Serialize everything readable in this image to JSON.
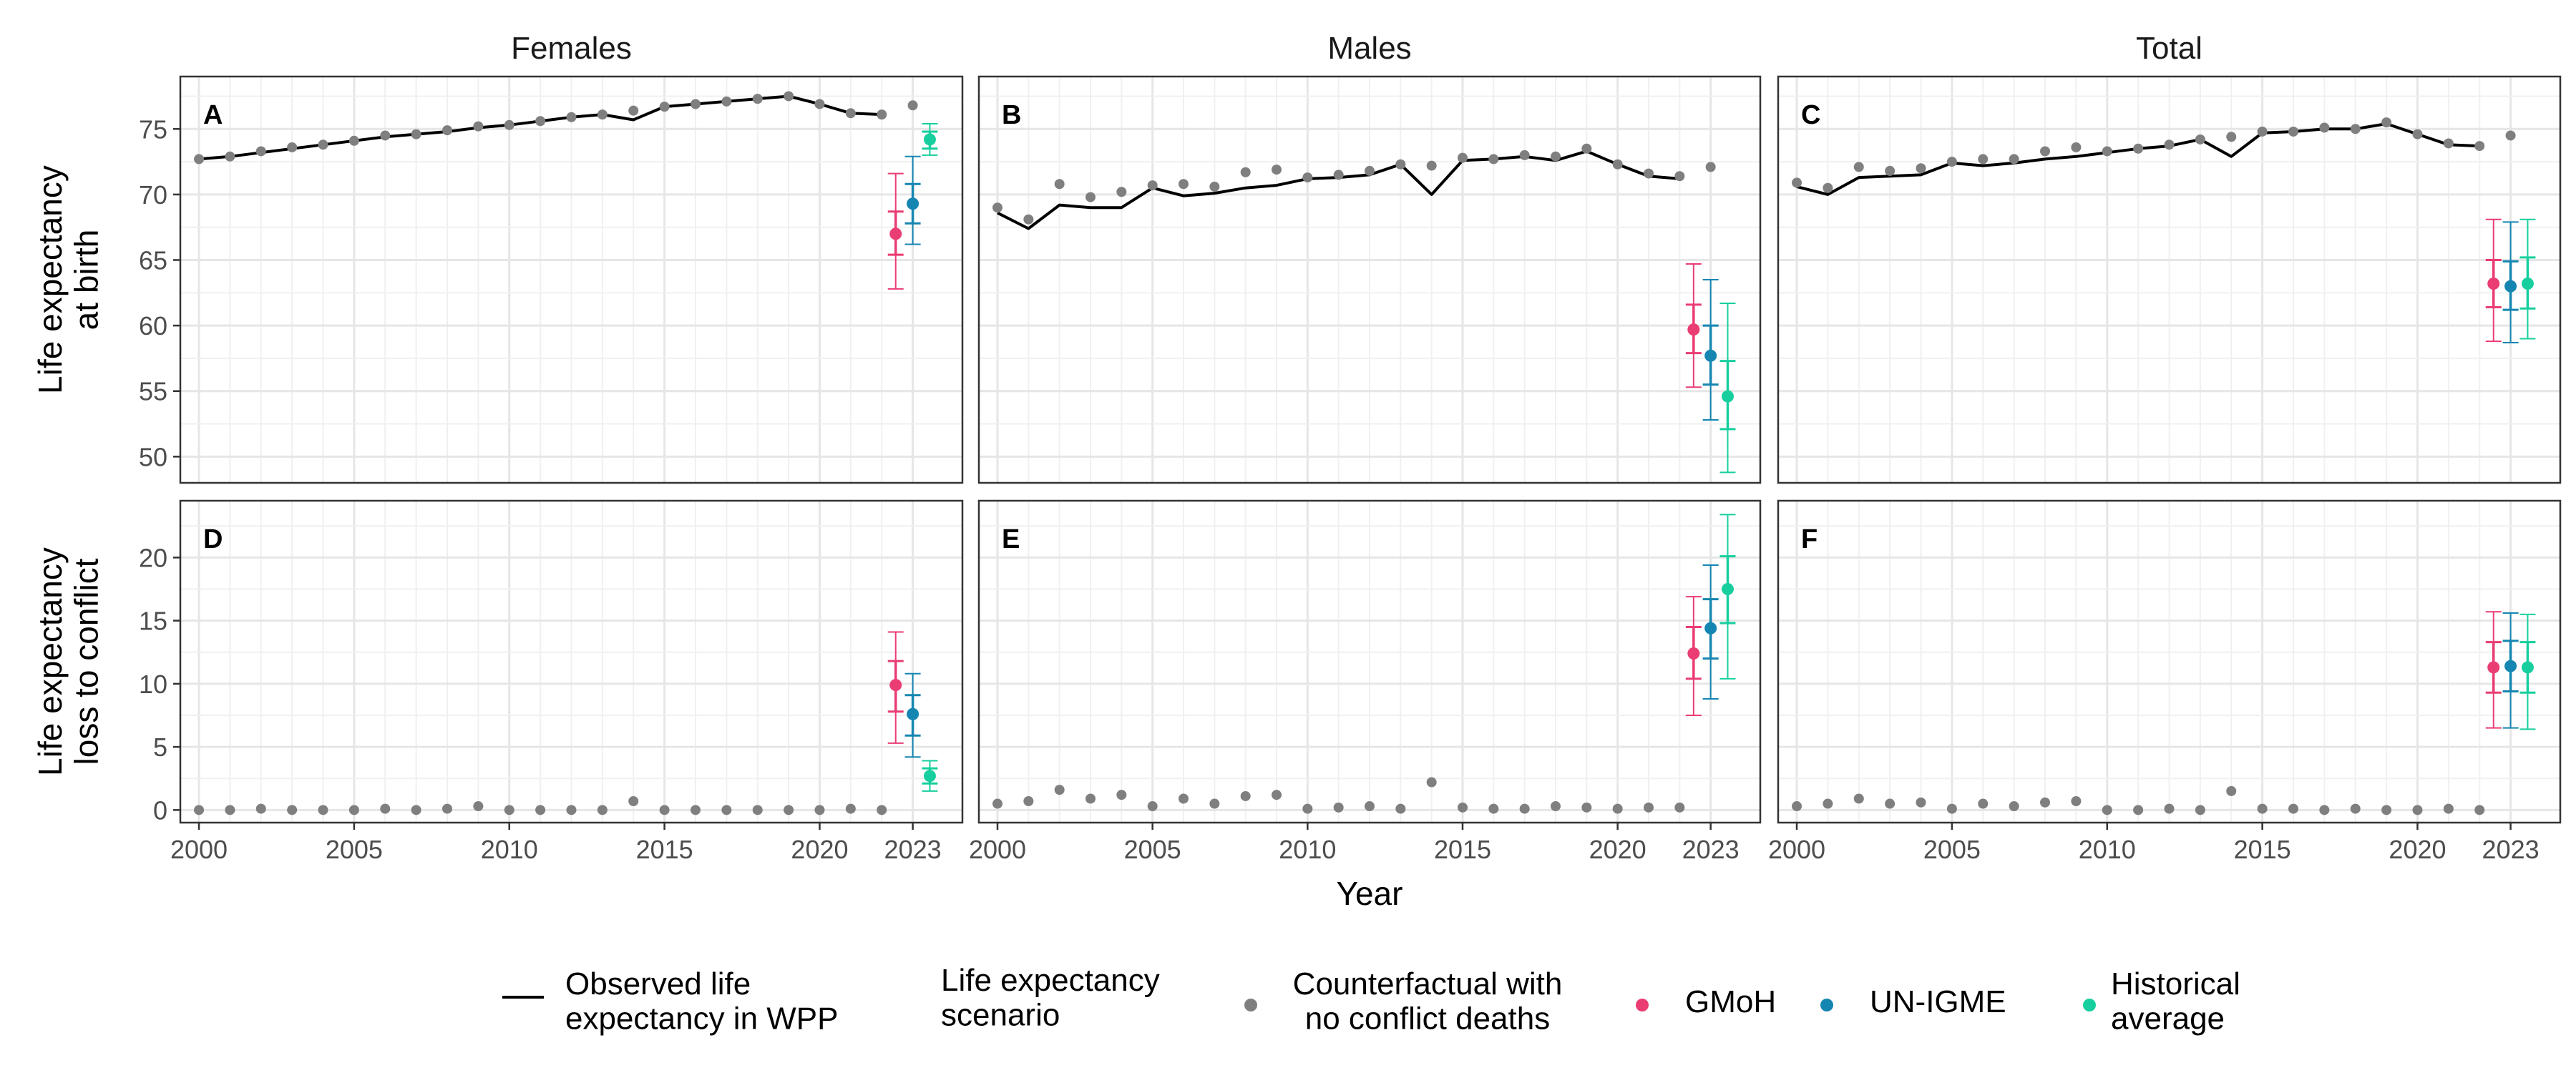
{
  "chart_data": {
    "type": "scatter",
    "facets": {
      "columns": [
        "Females",
        "Males",
        "Total"
      ],
      "rows": [
        {
          "ylabel": [
            "Life expectancy",
            "at birth"
          ],
          "ylim": [
            48,
            79
          ],
          "yticks": [
            50,
            55,
            60,
            65,
            70,
            75
          ]
        },
        {
          "ylabel": [
            "Life expectancy",
            "loss to conflict"
          ],
          "ylim": [
            -1,
            24.5
          ],
          "yticks": [
            0,
            5,
            10,
            15,
            20
          ]
        }
      ]
    },
    "xlabel": "Year",
    "xlim": [
      1999.4,
      2024.6
    ],
    "xticks": [
      "2000",
      "2005",
      "2010",
      "2015",
      "2020",
      "2023"
    ],
    "colors": {
      "observed": "#000000",
      "counterfactual": "#7f7f7f",
      "GMoH": "#ea3d73",
      "UN-IGME": "#1586b1",
      "Historical average": "#17cf9e"
    },
    "legend": {
      "position": "bottom",
      "line_label": [
        "Observed life",
        "expectancy in WPP"
      ],
      "title": [
        "Life expectancy",
        "scenario"
      ],
      "items": [
        {
          "key": "counterfactual",
          "label": [
            "Counterfactual with",
            "no conflict deaths"
          ]
        },
        {
          "key": "GMoH",
          "label": [
            "GMoH"
          ]
        },
        {
          "key": "UN-IGME",
          "label": [
            "UN-IGME"
          ]
        },
        {
          "key": "Historical average",
          "label": [
            "Historical",
            "average"
          ]
        }
      ]
    },
    "years": [
      2000,
      2001,
      2002,
      2003,
      2004,
      2005,
      2006,
      2007,
      2008,
      2009,
      2010,
      2011,
      2012,
      2013,
      2014,
      2015,
      2016,
      2017,
      2018,
      2019,
      2020,
      2021,
      2022,
      2023
    ],
    "panels": [
      {
        "tag": "A",
        "row": 0,
        "col": 0,
        "observed": [
          72.7,
          72.9,
          73.2,
          73.5,
          73.8,
          74.1,
          74.4,
          74.6,
          74.8,
          75.1,
          75.3,
          75.6,
          75.9,
          76.1,
          75.7,
          76.7,
          76.9,
          77.1,
          77.3,
          77.5,
          76.9,
          76.2,
          76.1
        ],
        "counterfactual": [
          72.7,
          72.9,
          73.3,
          73.6,
          73.8,
          74.1,
          74.5,
          74.6,
          74.9,
          75.2,
          75.3,
          75.6,
          75.9,
          76.1,
          76.4,
          76.7,
          76.9,
          77.1,
          77.3,
          77.5,
          76.9,
          76.2,
          76.1,
          76.8
        ],
        "scenarios": [
          {
            "key": "GMoH",
            "value": 67.0,
            "inner": [
              65.4,
              68.7
            ],
            "outer": [
              62.8,
              71.6
            ]
          },
          {
            "key": "UN-IGME",
            "value": 69.3,
            "inner": [
              67.8,
              70.8
            ],
            "outer": [
              66.2,
              72.9
            ]
          },
          {
            "key": "Historical average",
            "value": 74.2,
            "inner": [
              73.5,
              74.8
            ],
            "outer": [
              73.0,
              75.4
            ]
          }
        ]
      },
      {
        "tag": "B",
        "row": 0,
        "col": 1,
        "observed": [
          68.6,
          67.4,
          69.2,
          69.0,
          69.0,
          70.5,
          69.9,
          70.1,
          70.5,
          70.7,
          71.2,
          71.3,
          71.5,
          72.3,
          70.0,
          72.6,
          72.7,
          72.9,
          72.6,
          73.3,
          72.3,
          71.4,
          71.2
        ],
        "counterfactual": [
          69.0,
          68.1,
          70.8,
          69.8,
          70.2,
          70.7,
          70.8,
          70.6,
          71.7,
          71.9,
          71.3,
          71.5,
          71.8,
          72.3,
          72.2,
          72.8,
          72.7,
          73.0,
          72.9,
          73.5,
          72.3,
          71.6,
          71.4,
          72.1
        ],
        "scenarios": [
          {
            "key": "GMoH",
            "value": 59.7,
            "inner": [
              57.9,
              61.6
            ],
            "outer": [
              55.3,
              64.7
            ]
          },
          {
            "key": "UN-IGME",
            "value": 57.7,
            "inner": [
              55.5,
              60.0
            ],
            "outer": [
              52.8,
              63.5
            ]
          },
          {
            "key": "Historical average",
            "value": 54.6,
            "inner": [
              52.1,
              57.3
            ],
            "outer": [
              48.8,
              61.7
            ]
          }
        ]
      },
      {
        "tag": "C",
        "row": 0,
        "col": 2,
        "observed": [
          70.6,
          70.0,
          71.3,
          71.4,
          71.5,
          72.4,
          72.2,
          72.4,
          72.7,
          72.9,
          73.2,
          73.5,
          73.7,
          74.2,
          72.9,
          74.7,
          74.8,
          75.0,
          75.0,
          75.4,
          74.6,
          73.8,
          73.7
        ],
        "counterfactual": [
          70.9,
          70.5,
          72.1,
          71.8,
          72.0,
          72.5,
          72.7,
          72.7,
          73.3,
          73.6,
          73.3,
          73.5,
          73.8,
          74.2,
          74.4,
          74.8,
          74.8,
          75.1,
          75.0,
          75.5,
          74.6,
          73.9,
          73.7,
          74.5
        ],
        "scenarios": [
          {
            "key": "GMoH",
            "value": 63.2,
            "inner": [
              61.4,
              65.0
            ],
            "outer": [
              58.8,
              68.1
            ]
          },
          {
            "key": "UN-IGME",
            "value": 63.0,
            "inner": [
              61.2,
              64.9
            ],
            "outer": [
              58.7,
              67.9
            ]
          },
          {
            "key": "Historical average",
            "value": 63.2,
            "inner": [
              61.3,
              65.2
            ],
            "outer": [
              59.0,
              68.1
            ]
          }
        ]
      },
      {
        "tag": "D",
        "row": 1,
        "col": 0,
        "observed": [],
        "counterfactual": [
          0.0,
          0.0,
          0.1,
          0.0,
          0.0,
          0.0,
          0.1,
          0.0,
          0.1,
          0.3,
          0.0,
          0.0,
          0.0,
          0.0,
          0.7,
          0.0,
          0.0,
          0.0,
          0.0,
          0.0,
          0.0,
          0.1,
          0.0
        ],
        "scenarios": [
          {
            "key": "GMoH",
            "value": 9.9,
            "inner": [
              7.8,
              11.8
            ],
            "outer": [
              5.3,
              14.1
            ]
          },
          {
            "key": "UN-IGME",
            "value": 7.6,
            "inner": [
              5.9,
              9.1
            ],
            "outer": [
              4.2,
              10.8
            ]
          },
          {
            "key": "Historical average",
            "value": 2.7,
            "inner": [
              2.1,
              3.3
            ],
            "outer": [
              1.5,
              3.9
            ]
          }
        ]
      },
      {
        "tag": "E",
        "row": 1,
        "col": 1,
        "observed": [],
        "counterfactual": [
          0.5,
          0.7,
          1.6,
          0.9,
          1.2,
          0.3,
          0.9,
          0.5,
          1.1,
          1.2,
          0.1,
          0.2,
          0.3,
          0.1,
          2.2,
          0.2,
          0.1,
          0.1,
          0.3,
          0.2,
          0.1,
          0.2,
          0.2
        ],
        "scenarios": [
          {
            "key": "GMoH",
            "value": 12.4,
            "inner": [
              10.4,
              14.5
            ],
            "outer": [
              7.5,
              16.9
            ]
          },
          {
            "key": "UN-IGME",
            "value": 14.4,
            "inner": [
              12.0,
              16.7
            ],
            "outer": [
              8.8,
              19.4
            ]
          },
          {
            "key": "Historical average",
            "value": 17.5,
            "inner": [
              14.8,
              20.1
            ],
            "outer": [
              10.4,
              23.4
            ]
          }
        ]
      },
      {
        "tag": "F",
        "row": 1,
        "col": 2,
        "observed": [],
        "counterfactual": [
          0.3,
          0.5,
          0.9,
          0.5,
          0.6,
          0.1,
          0.5,
          0.3,
          0.6,
          0.7,
          0.0,
          0.0,
          0.1,
          0.0,
          1.5,
          0.1,
          0.1,
          0.0,
          0.1,
          0.0,
          0.0,
          0.1,
          0.0
        ],
        "scenarios": [
          {
            "key": "GMoH",
            "value": 11.3,
            "inner": [
              9.3,
              13.3
            ],
            "outer": [
              6.5,
              15.7
            ]
          },
          {
            "key": "UN-IGME",
            "value": 11.4,
            "inner": [
              9.4,
              13.4
            ],
            "outer": [
              6.5,
              15.6
            ]
          },
          {
            "key": "Historical average",
            "value": 11.3,
            "inner": [
              9.3,
              13.3
            ],
            "outer": [
              6.4,
              15.5
            ]
          }
        ]
      }
    ]
  }
}
